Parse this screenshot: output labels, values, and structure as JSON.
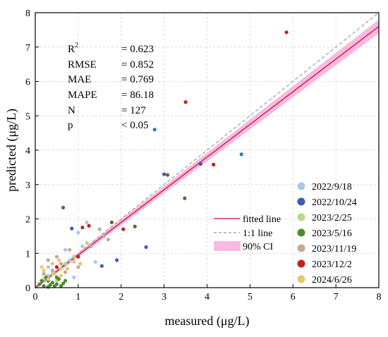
{
  "chart_data": {
    "type": "scatter",
    "xlabel": "measured (μg/L)",
    "ylabel": "predicted (μg/L)",
    "xlim": [
      0,
      8
    ],
    "ylim": [
      0,
      8
    ],
    "xticks": [
      "0",
      "1",
      "2",
      "3",
      "4",
      "5",
      "6",
      "7",
      "8"
    ],
    "yticks": [
      "0",
      "1",
      "2",
      "3",
      "4",
      "5",
      "6",
      "7",
      "8"
    ],
    "grid": "dashed",
    "stats": {
      "r2_label": "R",
      "r2_sup": "2",
      "r2_value": "= 0.623",
      "rmse_label": "RMSE",
      "rmse_value": "= 0.852",
      "mae_label": "MAE",
      "mae_value": "= 0.769",
      "mape_label": "MAPE",
      "mape_value": "= 86.18",
      "n_label": "N",
      "n_value": "= 127",
      "p_label": "p",
      "p_value": "< 0.05"
    },
    "fit_line": {
      "name": "fitted line",
      "slope": 0.95,
      "intercept": 0.0,
      "color": "#c8102e"
    },
    "identity_line": {
      "name": "1:1 line",
      "color": "#999999"
    },
    "confidence_band": {
      "name": "90% CI",
      "color": "#f7a1d5",
      "half_width_at_0": 0.05,
      "half_width_at_8": 0.2
    },
    "legend_position": "right",
    "series": [
      {
        "name": "2022/9/18",
        "color": "#a8c8e8",
        "points": [
          [
            0.3,
            0.6
          ],
          [
            0.5,
            0.3
          ],
          [
            0.7,
            1.1
          ],
          [
            1.0,
            1.6
          ],
          [
            1.2,
            1.9
          ],
          [
            0.9,
            0.3
          ],
          [
            1.4,
            0.75
          ],
          [
            0.3,
            0.35
          ],
          [
            0.8,
            0.8
          ],
          [
            1.1,
            1.2
          ]
        ]
      },
      {
        "name": "2022/10/24",
        "color": "#3c5bb4",
        "points": [
          [
            0.65,
            2.33
          ],
          [
            0.85,
            1.72
          ],
          [
            1.55,
            0.63
          ],
          [
            1.9,
            0.8
          ],
          [
            2.58,
            1.18
          ],
          [
            3.0,
            3.3
          ],
          [
            3.85,
            3.6
          ]
        ]
      },
      {
        "name": "2023/2/25",
        "color": "#b5d98a",
        "points": [
          [
            0.4,
            0.4
          ],
          [
            0.6,
            0.55
          ],
          [
            0.2,
            0.25
          ],
          [
            0.9,
            0.9
          ],
          [
            1.2,
            1.3
          ],
          [
            0.5,
            0.2
          ],
          [
            0.7,
            0.7
          ]
        ]
      },
      {
        "name": "2023/5/16",
        "color": "#4e8a2e",
        "points": [
          [
            0.1,
            0.1
          ],
          [
            0.2,
            0.05
          ],
          [
            0.3,
            0.2
          ],
          [
            0.35,
            0.08
          ],
          [
            0.4,
            0.15
          ],
          [
            0.5,
            0.1
          ],
          [
            0.55,
            0.25
          ],
          [
            0.6,
            0.05
          ],
          [
            0.25,
            0.3
          ],
          [
            0.45,
            0.05
          ],
          [
            0.15,
            0.2
          ],
          [
            0.7,
            0.2
          ],
          [
            0.65,
            0.12
          ],
          [
            0.3,
            0.02
          ],
          [
            0.5,
            0.3
          ]
        ]
      },
      {
        "name": "2023/11/19",
        "color": "#c7a894",
        "points": [
          [
            0.3,
            0.8
          ],
          [
            0.5,
            0.9
          ],
          [
            0.6,
            0.7
          ],
          [
            1.5,
            1.7
          ],
          [
            1.7,
            1.4
          ],
          [
            0.8,
            1.1
          ],
          [
            0.4,
            0.5
          ],
          [
            1.0,
            0.6
          ],
          [
            1.3,
            1.2
          ],
          [
            0.2,
            0.4
          ],
          [
            0.7,
            0.45
          ],
          [
            1.6,
            1.5
          ]
        ]
      },
      {
        "name": "2023/12/2",
        "color": "#c81e1e",
        "points": [
          [
            0.5,
            0.6
          ],
          [
            1.1,
            1.75
          ],
          [
            1.25,
            1.8
          ],
          [
            2.05,
            1.7
          ],
          [
            3.5,
            5.4
          ],
          [
            4.15,
            3.58
          ],
          [
            5.85,
            7.43
          ],
          [
            1.0,
            0.9
          ]
        ]
      },
      {
        "name": "2024/6/26",
        "color": "#e8c86a",
        "points": [
          [
            0.2,
            0.5
          ],
          [
            0.4,
            0.7
          ],
          [
            0.55,
            0.8
          ],
          [
            0.75,
            0.55
          ],
          [
            0.3,
            0.25
          ],
          [
            0.9,
            0.75
          ],
          [
            0.45,
            0.4
          ],
          [
            0.6,
            0.35
          ],
          [
            0.15,
            0.6
          ],
          [
            1.05,
            0.7
          ]
        ]
      }
    ],
    "extra_points": [
      {
        "series": "2022/10/24",
        "x": 2.78,
        "y": 4.6,
        "color": "#2b7fb0"
      },
      {
        "series": "2022/10/24",
        "x": 4.8,
        "y": 3.88,
        "color": "#2b7fb0"
      },
      {
        "series": "2023/11/19",
        "x": 3.08,
        "y": 3.28,
        "color": "#7a5a2a"
      },
      {
        "series": "2023/11/19",
        "x": 3.48,
        "y": 2.6,
        "color": "#7a5a2a"
      },
      {
        "series": "2023/11/19",
        "x": 2.32,
        "y": 1.78,
        "color": "#7a5a2a"
      },
      {
        "series": "2023/11/19",
        "x": 1.78,
        "y": 1.9,
        "color": "#7a5a2a"
      }
    ]
  }
}
